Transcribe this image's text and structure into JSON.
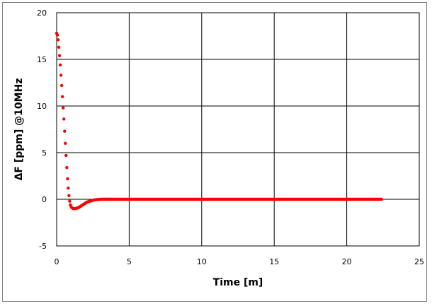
{
  "chart_data": {
    "type": "scatter",
    "title": "",
    "xlabel": "Time [m]",
    "ylabel": "ΔF [ppm] @10MHz",
    "xlim": [
      0,
      25
    ],
    "ylim": [
      -5,
      20
    ],
    "x_ticks": [
      "0",
      "5",
      "10",
      "15",
      "20",
      "25"
    ],
    "y_ticks": [
      "-5",
      "0",
      "5",
      "10",
      "15",
      "20"
    ],
    "grid": true,
    "legend": "none",
    "series_color": "#ff0000",
    "series": [
      {
        "x": [
          0,
          0.05,
          0.1,
          0.15,
          0.2,
          0.25,
          0.3,
          0.35,
          0.4,
          0.45,
          0.5,
          0.55,
          0.6,
          0.65,
          0.7,
          0.75,
          0.8,
          0.85,
          0.9,
          0.95,
          1.0,
          1.05,
          1.1,
          1.15,
          1.2,
          1.3,
          1.4,
          1.5,
          1.6,
          1.7,
          1.8,
          1.9,
          2.0,
          2.1,
          2.2,
          2.3,
          2.4,
          2.5,
          2.6,
          2.7,
          2.8,
          2.9,
          3.0,
          3.1,
          3.2,
          3.3,
          3.4,
          3.5,
          3.6,
          3.7,
          3.8,
          3.9,
          4.0,
          4.5,
          5,
          5.5,
          6,
          6.5,
          7,
          7.5,
          8,
          8.5,
          9,
          9.5,
          10,
          10.5,
          11,
          11.5,
          12,
          12.5,
          13,
          13.5,
          14,
          14.5,
          15,
          15.5,
          16,
          16.5,
          17,
          17.5,
          18,
          18.5,
          19,
          19.5,
          20,
          20.5,
          21,
          21.5,
          22,
          22.4
        ],
        "y": [
          17.8,
          17.6,
          17.1,
          16.3,
          15.4,
          14.4,
          13.3,
          12.2,
          11.0,
          9.8,
          8.6,
          7.3,
          6.0,
          4.7,
          3.4,
          2.2,
          1.2,
          0.4,
          -0.2,
          -0.6,
          -0.8,
          -0.9,
          -0.95,
          -1.0,
          -1.0,
          -1.0,
          -0.95,
          -0.9,
          -0.8,
          -0.7,
          -0.6,
          -0.5,
          -0.4,
          -0.3,
          -0.25,
          -0.2,
          -0.15,
          -0.1,
          -0.07,
          -0.05,
          -0.03,
          -0.02,
          -0.01,
          0,
          0,
          0,
          0,
          0,
          0,
          0,
          0,
          0,
          0,
          0,
          0,
          0,
          0,
          0,
          0,
          0,
          0,
          0,
          0,
          0,
          0,
          0,
          0,
          0,
          0,
          0,
          0,
          0,
          0,
          0,
          0,
          0,
          0,
          0,
          0,
          0,
          0,
          0,
          0,
          0,
          0,
          0,
          0,
          0,
          0,
          0
        ]
      }
    ]
  }
}
